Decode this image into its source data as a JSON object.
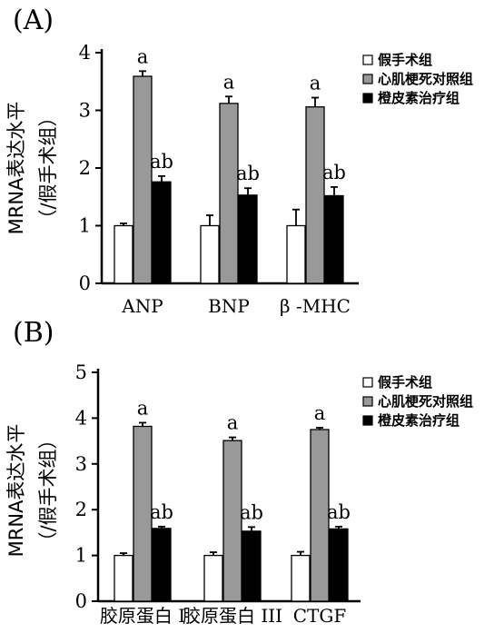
{
  "chart_data": [
    {
      "panel_label": "(A)",
      "type": "bar",
      "categories": [
        "ANP",
        "BNP",
        "β -MHC"
      ],
      "ylabel": [
        "MRNA表达水平",
        "（/假手术组）"
      ],
      "ylim": [
        0,
        4
      ],
      "yticks": [
        "0",
        "1",
        "2",
        "3",
        "4"
      ],
      "legend_position": "top-right",
      "series": [
        {
          "name": "假手术组",
          "color": "#ffffff",
          "values": [
            1.0,
            1.0,
            1.0
          ],
          "errors": [
            0.04,
            0.18,
            0.28
          ],
          "labels": [
            "",
            "",
            ""
          ]
        },
        {
          "name": "心肌梗死对照组",
          "color": "#999999",
          "values": [
            3.59,
            3.12,
            3.06
          ],
          "errors": [
            0.09,
            0.12,
            0.16
          ],
          "labels": [
            "a",
            "a",
            "a"
          ]
        },
        {
          "name": "橙皮素治疗组",
          "color": "#000000",
          "values": [
            1.76,
            1.53,
            1.52
          ],
          "errors": [
            0.1,
            0.12,
            0.15
          ],
          "labels": [
            "ab",
            "ab",
            "ab"
          ]
        }
      ]
    },
    {
      "panel_label": "(B)",
      "type": "bar",
      "categories": [
        "胶原蛋白 I",
        "胶原蛋白 III",
        "CTGF"
      ],
      "ylabel": [
        "MRNA表达水平",
        "（/假手术组）"
      ],
      "ylim": [
        0,
        5
      ],
      "yticks": [
        "0",
        "1",
        "2",
        "3",
        "4",
        "5"
      ],
      "legend_position": "top-right",
      "series": [
        {
          "name": "假手术组",
          "color": "#ffffff",
          "values": [
            1.0,
            1.0,
            1.0
          ],
          "errors": [
            0.05,
            0.07,
            0.08
          ],
          "labels": [
            "",
            "",
            ""
          ]
        },
        {
          "name": "心肌梗死对照组",
          "color": "#999999",
          "values": [
            3.82,
            3.51,
            3.75
          ],
          "errors": [
            0.08,
            0.07,
            0.04
          ],
          "labels": [
            "a",
            "a",
            "a"
          ]
        },
        {
          "name": "橙皮素治疗组",
          "color": "#000000",
          "values": [
            1.59,
            1.53,
            1.58
          ],
          "errors": [
            0.04,
            0.09,
            0.05
          ],
          "labels": [
            "ab",
            "ab",
            "ab"
          ]
        }
      ]
    }
  ]
}
